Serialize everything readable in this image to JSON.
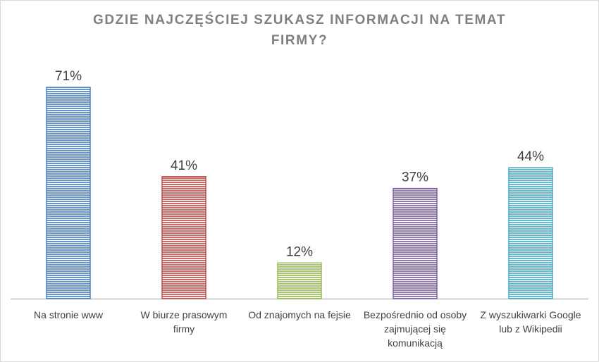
{
  "chart_data": {
    "type": "bar",
    "title": "GDZIE NAJCZĘŚCIEJ SZUKASZ INFORMACJI NA TEMAT FIRMY?",
    "categories": [
      "Na stronie www",
      "W biurze prasowym firmy",
      "Od znajomych na fejsie",
      "Bezpośrednio od osoby zajmującej się komunikacją",
      "Z wyszukiwarki Google lub z Wikipedii"
    ],
    "values": [
      71,
      41,
      12,
      37,
      44
    ],
    "data_labels": [
      "71%",
      "41%",
      "12%",
      "37%",
      "44%"
    ],
    "colors": [
      "#4f81bd",
      "#c0504d",
      "#9bbb59",
      "#8064a2",
      "#4bacc6"
    ],
    "xlabel": "",
    "ylabel": "",
    "ylim": [
      0,
      80
    ],
    "grid": false,
    "legend": "none"
  }
}
